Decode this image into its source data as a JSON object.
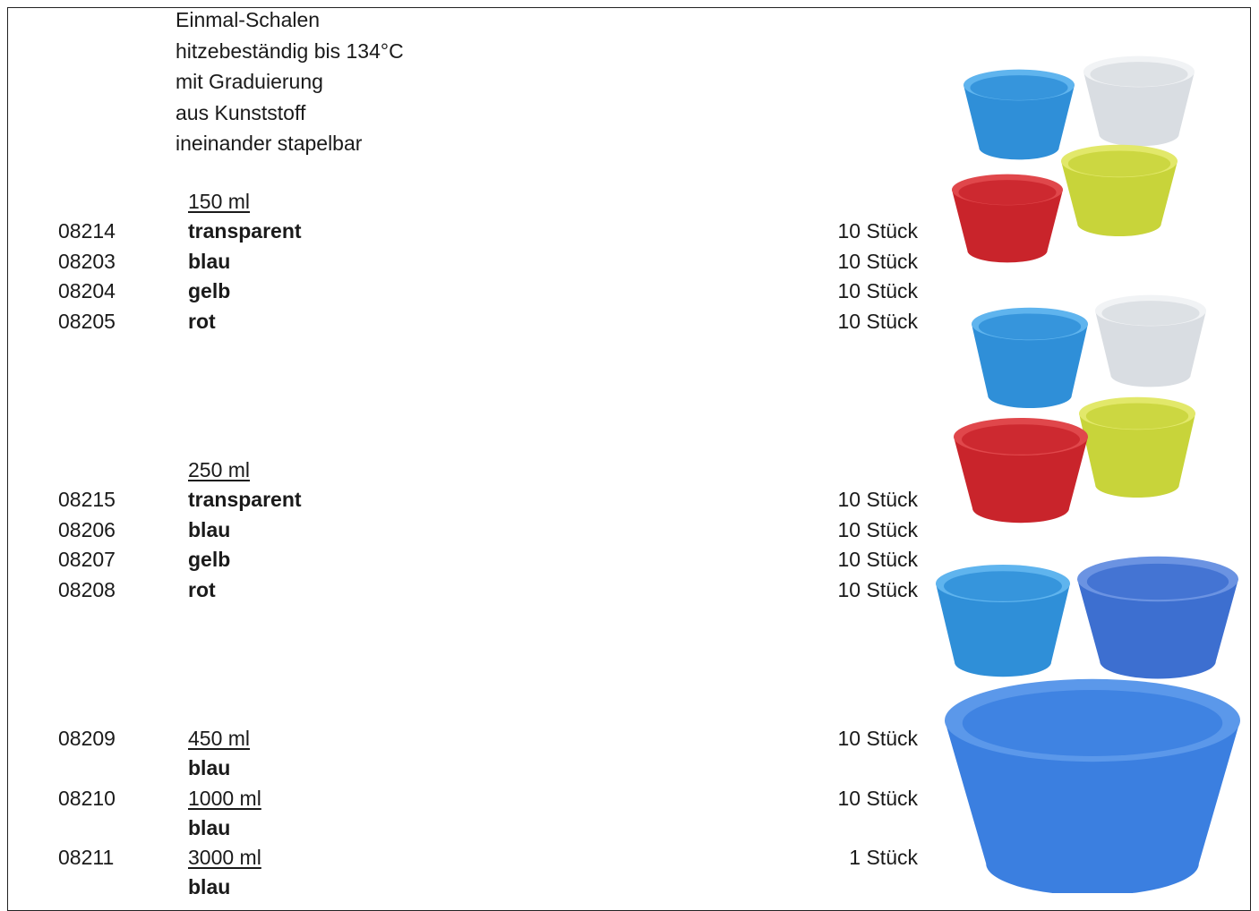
{
  "description": [
    "Einmal-Schalen",
    "hitzebeständig bis 134°C",
    "mit Graduierung",
    "aus Kunststoff",
    "ineinander stapelbar"
  ],
  "groups": [
    {
      "size": "150 ml",
      "items": [
        {
          "code": "08214",
          "color": "transparent",
          "qty": "10 Stück"
        },
        {
          "code": "08203",
          "color": "blau",
          "qty": "10 Stück"
        },
        {
          "code": "08204",
          "color": "gelb",
          "qty": "10 Stück"
        },
        {
          "code": "08205",
          "color": "rot",
          "qty": "10 Stück"
        }
      ]
    },
    {
      "size": "250 ml",
      "items": [
        {
          "code": "08215",
          "color": "transparent",
          "qty": "10 Stück"
        },
        {
          "code": "08206",
          "color": "blau",
          "qty": "10 Stück"
        },
        {
          "code": "08207",
          "color": "gelb",
          "qty": "10 Stück"
        },
        {
          "code": "08208",
          "color": "rot",
          "qty": "10 Stück"
        }
      ]
    }
  ],
  "single_items": [
    {
      "code": "08209",
      "size": "450 ml",
      "color": "blau",
      "qty": "10 Stück"
    },
    {
      "code": "08210",
      "size": "1000 ml",
      "color": "blau",
      "qty": "10 Stück"
    },
    {
      "code": "08211",
      "size": "3000 ml",
      "color": "blau",
      "qty": "1 Stück"
    }
  ]
}
